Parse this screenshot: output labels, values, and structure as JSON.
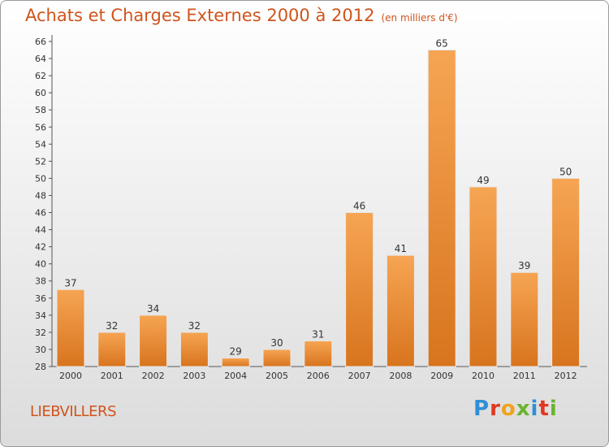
{
  "title": "Achats et Charges Externes 2000 à 2012",
  "unit_note": "(en milliers d'€)",
  "commune": "LIEBVILLERS",
  "logo": {
    "letters": [
      "P",
      "r",
      "o",
      "x",
      "i",
      "t",
      "i"
    ],
    "colors": [
      "#2f8fd6",
      "#e2371f",
      "#f0a21c",
      "#6ab42d",
      "#2f8fd6",
      "#e2371f",
      "#6ab42d"
    ]
  },
  "colors": {
    "bar_top": "#f6a553",
    "bar_bottom": "#d8741e",
    "text": "#d0541c"
  },
  "chart_data": {
    "type": "bar",
    "title": "Achats et Charges Externes 2000 à 2012",
    "categories": [
      "2000",
      "2001",
      "2002",
      "2003",
      "2004",
      "2005",
      "2006",
      "2007",
      "2008",
      "2009",
      "2010",
      "2011",
      "2012"
    ],
    "values": [
      37,
      32,
      34,
      32,
      29,
      30,
      31,
      46,
      41,
      65,
      49,
      39,
      50
    ],
    "ylim": [
      28,
      66
    ],
    "yticks": [
      28,
      30,
      32,
      34,
      36,
      38,
      40,
      42,
      44,
      46,
      48,
      50,
      52,
      54,
      56,
      58,
      60,
      62,
      64,
      66
    ],
    "xlabel": "",
    "ylabel": "",
    "grid": false,
    "data_labels": true
  }
}
